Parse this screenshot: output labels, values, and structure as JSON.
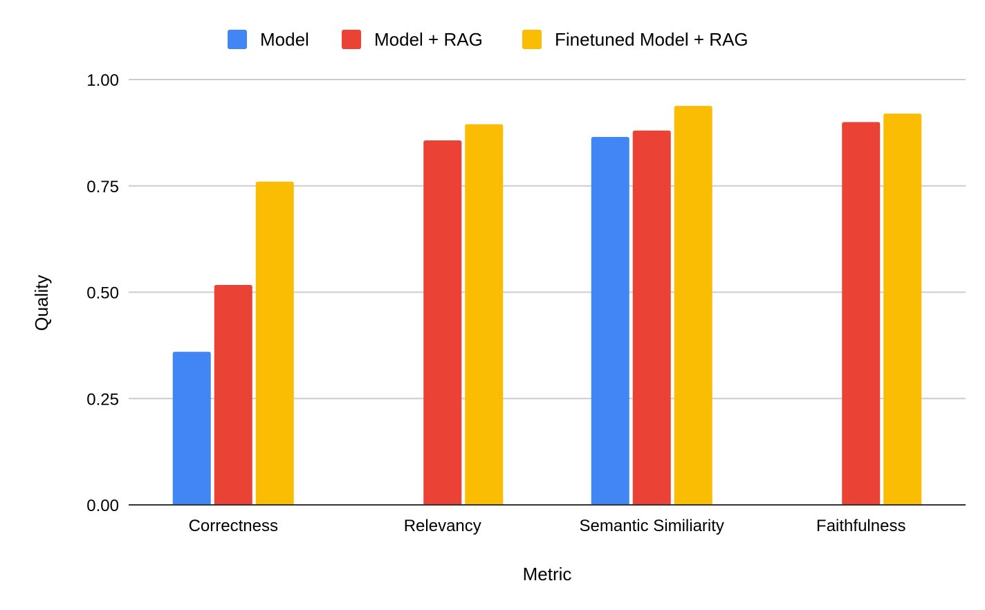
{
  "chart_data": {
    "type": "bar",
    "title": "",
    "xlabel": "Metric",
    "ylabel": "Quality",
    "categories": [
      "Correctness",
      "Relevancy",
      "Semantic Similiarity",
      "Faithfulness"
    ],
    "series": [
      {
        "name": "Model",
        "color": "#4285F4",
        "values": [
          0.36,
          0,
          0.865,
          0
        ]
      },
      {
        "name": "Model + RAG",
        "color": "#EA4335",
        "values": [
          0.517,
          0.857,
          0.88,
          0.9
        ]
      },
      {
        "name": "Finetuned Model + RAG",
        "color": "#FBBC04",
        "values": [
          0.76,
          0.895,
          0.938,
          0.92
        ]
      }
    ],
    "ylim": [
      0,
      1
    ],
    "yticks": [
      "0.00",
      "0.25",
      "0.50",
      "0.75",
      "1.00"
    ],
    "ytick_values": [
      0,
      0.25,
      0.5,
      0.75,
      1
    ],
    "grid": true,
    "legend_position": "top-center"
  }
}
